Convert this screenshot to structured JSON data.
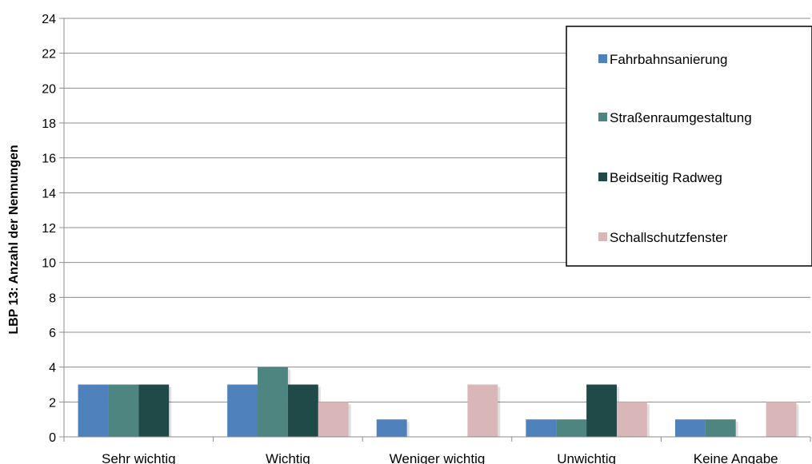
{
  "chart_data": {
    "type": "bar",
    "ylabel": "LBP 13: Anzahl der Nennungen",
    "xlabel": "",
    "ylim": [
      0,
      24
    ],
    "yticks": [
      0,
      2,
      4,
      6,
      8,
      10,
      12,
      14,
      16,
      18,
      20,
      22,
      24
    ],
    "grid": true,
    "legend_position": "top-right",
    "categories": [
      "Sehr wichtig",
      "Wichtig",
      "Weniger wichtig",
      "Unwichtig",
      "Keine Angabe"
    ],
    "series": [
      {
        "name": "Fahrbahnsanierung",
        "color": "#4f81bd",
        "values": [
          3,
          3,
          1,
          1,
          1
        ]
      },
      {
        "name": "Straßenraumgestaltung",
        "color": "#4e8581",
        "values": [
          3,
          4,
          0,
          1,
          1
        ]
      },
      {
        "name": "Beidseitig Radweg",
        "color": "#1f4a47",
        "values": [
          3,
          3,
          0,
          3,
          0
        ]
      },
      {
        "name": "Schallschutzfenster",
        "color": "#d9b7b8",
        "values": [
          0,
          2,
          3,
          2,
          2
        ]
      }
    ]
  }
}
